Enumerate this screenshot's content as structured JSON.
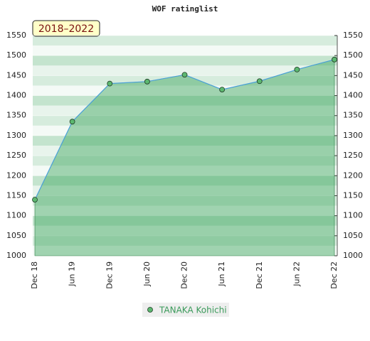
{
  "chart_data": {
    "type": "line",
    "title": "WOF ratinglist",
    "annotation": "2018–2022",
    "categories": [
      "Dec 18",
      "Jun 19",
      "Dec 19",
      "Jun 20",
      "Dec 20",
      "Jun 21",
      "Dec 21",
      "Jun 22",
      "Dec 22"
    ],
    "series": [
      {
        "name": "TANAKA Kohichi",
        "color": "#4aa0d8",
        "values": [
          1140,
          1335,
          1430,
          1435,
          1452,
          1415,
          1436,
          1465,
          1490
        ]
      }
    ],
    "ylim": [
      1000,
      1550
    ],
    "yticks": [
      1000,
      1050,
      1100,
      1150,
      1200,
      1250,
      1300,
      1350,
      1400,
      1450,
      1500,
      1550
    ],
    "grid": true
  }
}
